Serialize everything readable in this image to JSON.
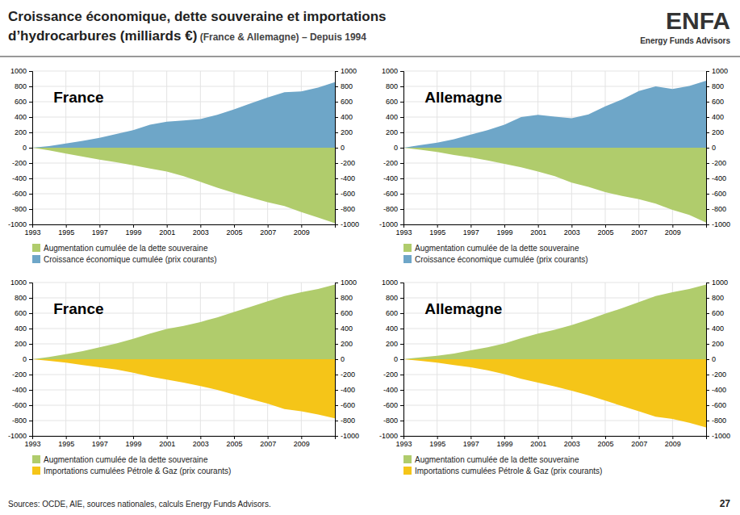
{
  "title": [
    "Croissance économique, dette souveraine et importations",
    "d’hydrocarbures (milliards €)"
  ],
  "subtitle": " (France & Allemagne) – Depuis 1994",
  "annotations": [
    "ENFA",
    "Energy Funds Advisors",
    "Sources: OCDE, AIE, sources nationales, calculs Energy Funds Advisors.",
    "27"
  ],
  "chart_data": [
    {
      "type": "area",
      "title": "France",
      "x": [
        1993,
        1994,
        1995,
        1996,
        1997,
        1998,
        1999,
        2000,
        2001,
        2002,
        2003,
        2004,
        2005,
        2006,
        2007,
        2008,
        2009,
        2010,
        2011
      ],
      "xlim": [
        1993,
        2011
      ],
      "xticks": [
        1993,
        1995,
        1997,
        1999,
        2001,
        2003,
        2005,
        2007,
        2009
      ],
      "ylim": [
        -1000,
        1000
      ],
      "yticks": [
        -1000,
        -800,
        -600,
        -400,
        -200,
        0,
        200,
        400,
        600,
        800,
        1000
      ],
      "y2lim": [
        -1000,
        1000
      ],
      "y2ticks": [
        -1000,
        -800,
        -600,
        -400,
        -200,
        0,
        200,
        400,
        600,
        800,
        1000
      ],
      "grid": true,
      "legend": "bottom",
      "series": [
        {
          "name": "Augmentation cumulée de la dette souveraine",
          "color": "#B0CC6C",
          "values": [
            0,
            -35,
            -75,
            -115,
            -155,
            -190,
            -230,
            -270,
            -310,
            -370,
            -445,
            -520,
            -590,
            -650,
            -710,
            -760,
            -840,
            -910,
            -985
          ]
        },
        {
          "name": "Croissance économique cumulée (prix courants)",
          "color": "#6EA6C8",
          "values": [
            0,
            20,
            55,
            90,
            130,
            180,
            230,
            300,
            340,
            355,
            375,
            430,
            500,
            580,
            655,
            725,
            735,
            785,
            855
          ]
        }
      ]
    },
    {
      "type": "area",
      "title": "Allemagne",
      "x": [
        1993,
        1994,
        1995,
        1996,
        1997,
        1998,
        1999,
        2000,
        2001,
        2002,
        2003,
        2004,
        2005,
        2006,
        2007,
        2008,
        2009,
        2010,
        2011
      ],
      "xlim": [
        1993,
        2011
      ],
      "xticks": [
        1993,
        1995,
        1997,
        1999,
        2001,
        2003,
        2005,
        2007,
        2009
      ],
      "ylim": [
        -1000,
        1000
      ],
      "yticks": [
        -1000,
        -800,
        -600,
        -400,
        -200,
        0,
        200,
        400,
        600,
        800,
        1000
      ],
      "y2lim": [
        -1000,
        1000
      ],
      "y2ticks": [
        -1000,
        -800,
        -600,
        -400,
        -200,
        0,
        200,
        400,
        600,
        800,
        1000
      ],
      "grid": true,
      "legend": "bottom",
      "series": [
        {
          "name": "Augmentation cumulée de la dette souveraine",
          "color": "#B0CC6C",
          "values": [
            0,
            -25,
            -55,
            -95,
            -125,
            -165,
            -210,
            -255,
            -310,
            -370,
            -455,
            -510,
            -580,
            -630,
            -670,
            -730,
            -810,
            -875,
            -975
          ]
        },
        {
          "name": "Croissance économique cumulée (prix courants)",
          "color": "#6EA6C8",
          "values": [
            0,
            35,
            65,
            110,
            170,
            230,
            300,
            400,
            430,
            405,
            385,
            435,
            540,
            630,
            740,
            800,
            765,
            805,
            875
          ]
        }
      ]
    },
    {
      "type": "area",
      "title": "France",
      "x": [
        1993,
        1994,
        1995,
        1996,
        1997,
        1998,
        1999,
        2000,
        2001,
        2002,
        2003,
        2004,
        2005,
        2006,
        2007,
        2008,
        2009,
        2010,
        2011
      ],
      "xlim": [
        1993,
        2011
      ],
      "xticks": [
        1993,
        1995,
        1997,
        1999,
        2001,
        2003,
        2005,
        2007,
        2009
      ],
      "ylim": [
        -1000,
        1000
      ],
      "yticks": [
        -1000,
        -800,
        -600,
        -400,
        -200,
        0,
        200,
        400,
        600,
        800,
        1000
      ],
      "y2lim": [
        -1000,
        1000
      ],
      "y2ticks": [
        -1000,
        -800,
        -600,
        -400,
        -200,
        0,
        200,
        400,
        600,
        800,
        1000
      ],
      "grid": true,
      "legend": "bottom",
      "series": [
        {
          "name": "Augmentation cumulée de la dette souveraine",
          "color": "#B0CC6C",
          "values": [
            0,
            30,
            65,
            105,
            155,
            205,
            265,
            335,
            395,
            435,
            485,
            545,
            615,
            685,
            755,
            825,
            875,
            915,
            975
          ]
        },
        {
          "name": "Importations cumulées Pétrole & Gaz (prix courants)",
          "color": "#F5C518",
          "values": [
            0,
            -20,
            -45,
            -75,
            -105,
            -135,
            -175,
            -225,
            -265,
            -305,
            -350,
            -400,
            -460,
            -520,
            -580,
            -650,
            -680,
            -720,
            -770
          ]
        }
      ]
    },
    {
      "type": "area",
      "title": "Allemagne",
      "x": [
        1993,
        1994,
        1995,
        1996,
        1997,
        1998,
        1999,
        2000,
        2001,
        2002,
        2003,
        2004,
        2005,
        2006,
        2007,
        2008,
        2009,
        2010,
        2011
      ],
      "xlim": [
        1993,
        2011
      ],
      "xticks": [
        1993,
        1995,
        1997,
        1999,
        2001,
        2003,
        2005,
        2007,
        2009
      ],
      "ylim": [
        -1000,
        1000
      ],
      "yticks": [
        -1000,
        -800,
        -600,
        -400,
        -200,
        0,
        200,
        400,
        600,
        800,
        1000
      ],
      "y2lim": [
        -1000,
        1000
      ],
      "y2ticks": [
        -1000,
        -800,
        -600,
        -400,
        -200,
        0,
        200,
        400,
        600,
        800,
        1000
      ],
      "grid": true,
      "legend": "bottom",
      "series": [
        {
          "name": "Augmentation cumulée de la dette souveraine",
          "color": "#B0CC6C",
          "values": [
            0,
            25,
            45,
            75,
            115,
            155,
            205,
            275,
            335,
            385,
            445,
            515,
            595,
            665,
            745,
            825,
            875,
            915,
            975
          ]
        },
        {
          "name": "Importations cumulées Pétrole & Gaz (prix courants)",
          "color": "#F5C518",
          "values": [
            0,
            -20,
            -45,
            -75,
            -105,
            -145,
            -195,
            -255,
            -305,
            -355,
            -410,
            -470,
            -540,
            -610,
            -680,
            -750,
            -780,
            -830,
            -890
          ]
        }
      ]
    }
  ]
}
